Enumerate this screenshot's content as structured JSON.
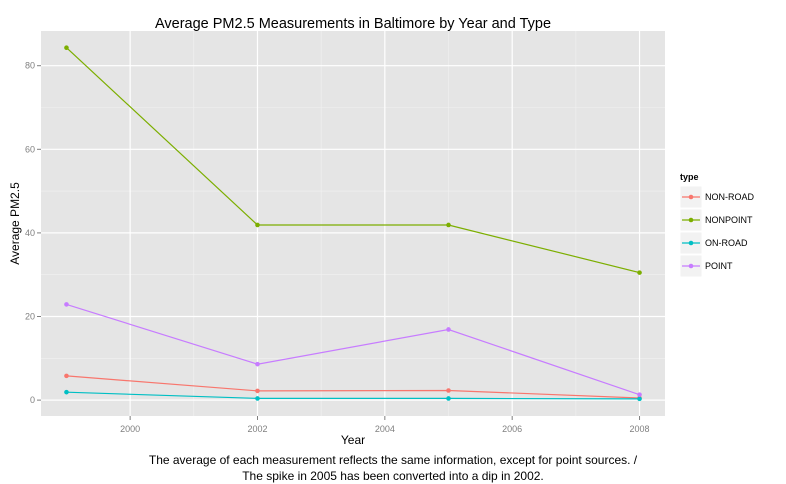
{
  "chart_data": {
    "type": "line",
    "title": "Average PM2.5 Measurements in Baltimore by Year and Type",
    "xlabel": "Year",
    "ylabel": "Average PM2.5",
    "x": [
      1999,
      2002,
      2005,
      2008
    ],
    "x_ticks": [
      2000,
      2002,
      2004,
      2006,
      2008
    ],
    "x_tick_labels": [
      "2000",
      "2002",
      "2004",
      "2006",
      "2008"
    ],
    "y_ticks": [
      0,
      20,
      40,
      60,
      80
    ],
    "y_tick_labels": [
      "0",
      "20",
      "40",
      "60",
      "80"
    ],
    "xlim": [
      1998.6,
      2008.4
    ],
    "ylim": [
      -3.8,
      88.3
    ],
    "grid": true,
    "legend_title": "type",
    "legend_position": "right",
    "series": [
      {
        "name": "NON-ROAD",
        "color": "#f8766d",
        "values": [
          5.8,
          2.2,
          2.3,
          0.5
        ]
      },
      {
        "name": "NONPOINT",
        "color": "#7cae00",
        "values": [
          84.3,
          41.9,
          41.9,
          30.5
        ]
      },
      {
        "name": "ON-ROAD",
        "color": "#00bfc4",
        "values": [
          1.9,
          0.4,
          0.4,
          0.3
        ]
      },
      {
        "name": "POINT",
        "color": "#c77cff",
        "values": [
          22.9,
          8.6,
          16.9,
          1.3
        ]
      }
    ]
  },
  "caption": {
    "line1": "The average of each measurement reflects the same information, except for point sources. /",
    "line2": "The spike in 2005 has been converted into a dip in 2002."
  },
  "colors": {
    "panel_background": "#e5e5e5",
    "grid_major": "#ffffff",
    "grid_minor": "#f2f2f2",
    "axis_text": "#7f7f7f"
  }
}
